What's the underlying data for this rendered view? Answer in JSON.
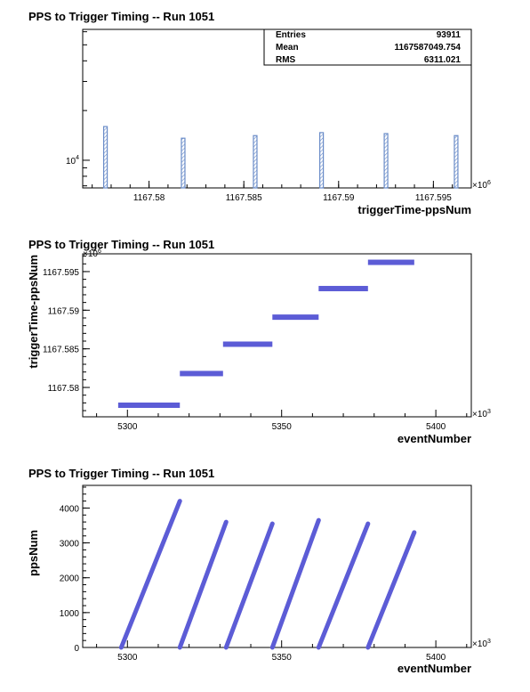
{
  "chart_data": [
    {
      "type": "bar",
      "title": "PPS to Trigger Timing -- Run 1051",
      "xlabel": "triggerTime-ppsNum",
      "ylabel": "",
      "x_multiplier": "×10^6",
      "x_multiplier_base": "×10",
      "x_multiplier_exp": "6",
      "y_scale": "log",
      "y_tick_labels": [
        {
          "base": "10",
          "exp": "4",
          "value": 10000
        }
      ],
      "xlim": [
        1167.5765,
        1167.597
      ],
      "ylim": [
        6800,
        62000
      ],
      "x_tick_labels": [
        "1167.58",
        "1167.585",
        "1167.59",
        "1167.595"
      ],
      "x_tick_values": [
        1167.58,
        1167.585,
        1167.59,
        1167.595
      ],
      "bars": [
        {
          "x": 1167.5777,
          "value": 16000
        },
        {
          "x": 1167.5818,
          "value": 13600
        },
        {
          "x": 1167.5856,
          "value": 14100
        },
        {
          "x": 1167.5891,
          "value": 14700
        },
        {
          "x": 1167.5925,
          "value": 14500
        },
        {
          "x": 1167.5962,
          "value": 14100
        }
      ],
      "stats": [
        {
          "label": "Entries",
          "value": "93911"
        },
        {
          "label": "Mean",
          "value": "1167587049.754"
        },
        {
          "label": "RMS",
          "value": "6311.021"
        }
      ],
      "grid": false
    },
    {
      "type": "scatter",
      "title": "PPS to Trigger Timing -- Run 1051",
      "xlabel": "eventNumber",
      "ylabel": "triggerTime-ppsNum",
      "x_multiplier": "×10^3",
      "x_multiplier_base": "×10",
      "x_multiplier_exp": "3",
      "y_multiplier": "×10^6",
      "y_multiplier_base": "×10",
      "y_multiplier_exp": "6",
      "xlim": [
        5285.5,
        5411.5
      ],
      "ylim": [
        1167.5762,
        1167.5973
      ],
      "x_tick_labels": [
        "5300",
        "5350",
        "5400"
      ],
      "x_tick_values": [
        5300,
        5350,
        5400
      ],
      "y_tick_labels": [
        "1167.58",
        "1167.585",
        "1167.59",
        "1167.595"
      ],
      "y_tick_values": [
        1167.58,
        1167.585,
        1167.59,
        1167.595
      ],
      "segments": [
        {
          "x": [
            5297,
            5317
          ],
          "y": 1167.5777
        },
        {
          "x": [
            5317,
            5331
          ],
          "y": 1167.5818
        },
        {
          "x": [
            5331,
            5347
          ],
          "y": 1167.5856
        },
        {
          "x": [
            5347,
            5362
          ],
          "y": 1167.5891
        },
        {
          "x": [
            5362,
            5378
          ],
          "y": 1167.5928
        },
        {
          "x": [
            5378,
            5393
          ],
          "y": 1167.5962
        }
      ],
      "color": "#5c5cd6",
      "grid": false
    },
    {
      "type": "scatter",
      "title": "PPS to Trigger Timing -- Run 1051",
      "xlabel": "eventNumber",
      "ylabel": "ppsNum",
      "x_multiplier": "×10^3",
      "x_multiplier_base": "×10",
      "x_multiplier_exp": "3",
      "xlim": [
        5285.5,
        5411.5
      ],
      "ylim": [
        0,
        4650
      ],
      "x_tick_labels": [
        "5300",
        "5350",
        "5400"
      ],
      "x_tick_values": [
        5300,
        5350,
        5400
      ],
      "y_tick_labels": [
        "0",
        "1000",
        "2000",
        "3000",
        "4000"
      ],
      "y_tick_values": [
        0,
        1000,
        2000,
        3000,
        4000
      ],
      "ramps": [
        {
          "x": [
            5298,
            5317
          ],
          "y": [
            0,
            4200
          ]
        },
        {
          "x": [
            5317,
            5332
          ],
          "y": [
            0,
            3600
          ]
        },
        {
          "x": [
            5332,
            5347
          ],
          "y": [
            0,
            3550
          ]
        },
        {
          "x": [
            5347,
            5362
          ],
          "y": [
            0,
            3650
          ]
        },
        {
          "x": [
            5362,
            5378
          ],
          "y": [
            0,
            3550
          ]
        },
        {
          "x": [
            5378,
            5393
          ],
          "y": [
            0,
            3300
          ]
        }
      ],
      "color": "#5c5cd6",
      "grid": false
    }
  ]
}
